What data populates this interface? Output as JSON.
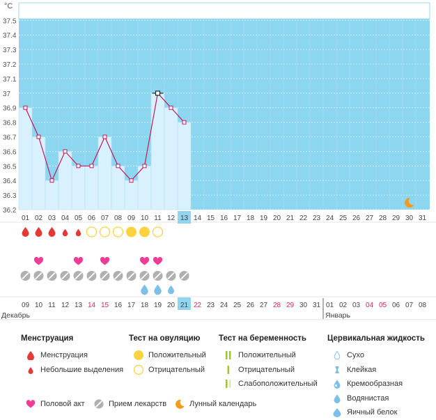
{
  "chart_data": {
    "type": "line",
    "unit_label": "°C",
    "y_ticks": [
      "36.2",
      "36.3",
      "36.4",
      "36.5",
      "36.6",
      "36.7",
      "36.8",
      "36.9",
      "37",
      "37.1",
      "37.2",
      "37.3",
      "37.4",
      "37.5"
    ],
    "ylim": [
      36.2,
      37.5
    ],
    "cycle_days": [
      "01",
      "02",
      "03",
      "04",
      "05",
      "06",
      "07",
      "08",
      "09",
      "10",
      "11",
      "12",
      "13",
      "14",
      "15",
      "16",
      "17",
      "18",
      "19",
      "20",
      "21",
      "22",
      "23",
      "24",
      "25",
      "26",
      "27",
      "28",
      "29",
      "30",
      "31"
    ],
    "current_cycle_day": "13",
    "temperature": [
      36.9,
      36.7,
      36.4,
      36.6,
      36.5,
      36.5,
      36.7,
      36.5,
      36.4,
      36.5,
      37.0,
      36.9,
      36.8
    ],
    "dates": [
      "09",
      "10",
      "11",
      "12",
      "13",
      "14",
      "15",
      "16",
      "17",
      "18",
      "19",
      "20",
      "21",
      "22",
      "23",
      "24",
      "25",
      "26",
      "27",
      "28",
      "29",
      "30",
      "31",
      "01",
      "02",
      "03",
      "04",
      "05",
      "06",
      "07",
      "08"
    ],
    "red_date_indices": [
      5,
      6,
      13,
      19,
      20,
      26,
      27
    ],
    "today_date_index": 12,
    "month_labels": [
      {
        "label": "Декабрь",
        "start": 0
      },
      {
        "label": "Январь",
        "start": 23
      }
    ],
    "markers": {
      "menstruation": [
        "heavy",
        "heavy",
        "heavy",
        "light",
        "light",
        null,
        null,
        null,
        null,
        null,
        null,
        null,
        null
      ],
      "ovulation_test": [
        null,
        null,
        null,
        null,
        null,
        "negative",
        "negative",
        "negative",
        "positive",
        "positive",
        "negative",
        null,
        null
      ],
      "intercourse": [
        false,
        true,
        false,
        false,
        true,
        false,
        true,
        false,
        false,
        true,
        true,
        false,
        false
      ],
      "medication": [
        true,
        true,
        true,
        true,
        true,
        true,
        true,
        true,
        true,
        true,
        true,
        true,
        true
      ],
      "cervical_fluid": [
        null,
        null,
        null,
        null,
        null,
        null,
        null,
        null,
        null,
        "egg_white",
        "egg_white",
        "watery",
        null
      ]
    },
    "moon_day_index": 29,
    "colors": {
      "bg": "#8dd6f0",
      "bar": "#d8f1fc",
      "line": "#c2185b",
      "menstruation": "#e53935",
      "ovulation": "#fbd341",
      "heart": "#f03c96",
      "pill": "#b0b0b0",
      "drop": "#7cc0ea",
      "moon": "#f59a1c",
      "today": "#90d4ee",
      "weekend": "#e0245e"
    }
  },
  "legend": {
    "menstruation": {
      "title": "Менструация",
      "items": [
        "Менструация",
        "Небольшие выделения"
      ]
    },
    "ovulation": {
      "title": "Тест на овуляцию",
      "items": [
        "Положительный",
        "Отрицательный"
      ]
    },
    "pregnancy": {
      "title": "Тест на беременность",
      "items": [
        "Положительный",
        "Отрицательный",
        "Слабоположительный"
      ]
    },
    "cervical": {
      "title": "Цервикальная жидкость",
      "items": [
        "Сухо",
        "Клейкая",
        "Кремообразная",
        "Водянистая",
        "Яичный белок"
      ]
    },
    "bottom": {
      "intercourse": "Половой акт",
      "medication": "Прием лекарств",
      "lunar": "Лунный календарь"
    }
  }
}
